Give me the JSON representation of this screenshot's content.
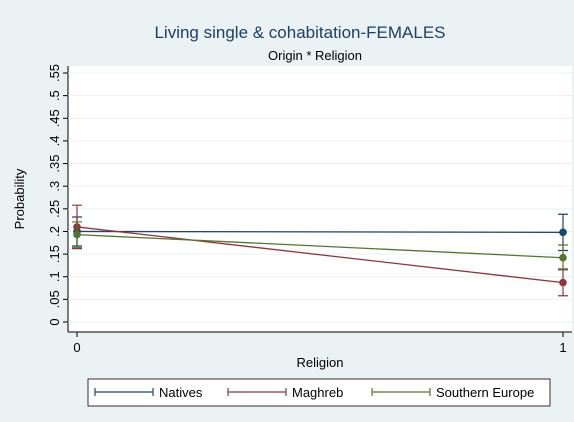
{
  "chart_data": {
    "type": "line",
    "title": "Living single & cohabitation-FEMALES",
    "subtitle": "Origin * Religion",
    "x_label": "Religion",
    "y_label": "Probability",
    "x": [
      0,
      1
    ],
    "xlim": [
      0,
      1
    ],
    "xticks": [
      0,
      1
    ],
    "ylim": [
      0,
      0.55
    ],
    "yticks": [
      0,
      {
        "value": 0.05,
        "label": ".05"
      },
      {
        "value": 0.1,
        "label": ".1"
      },
      {
        "value": 0.15,
        "label": ".15"
      },
      {
        "value": 0.2,
        "label": ".2"
      },
      {
        "value": 0.25,
        "label": ".25"
      },
      {
        "value": 0.3,
        "label": ".3"
      },
      {
        "value": 0.35,
        "label": ".35"
      },
      {
        "value": 0.4,
        "label": ".4"
      },
      {
        "value": 0.45,
        "label": ".45"
      },
      {
        "value": 0.5,
        "label": ".5"
      },
      {
        "value": 0.55,
        "label": ".55"
      }
    ],
    "grid": true,
    "legend": "bottom",
    "series": [
      {
        "name": "Natives",
        "color": "#1a476f",
        "values": [
          0.2,
          0.198
        ],
        "lower": [
          0.168,
          0.158
        ],
        "upper": [
          0.232,
          0.238
        ]
      },
      {
        "name": "Maghreb",
        "color": "#90353b",
        "values": [
          0.21,
          0.087
        ],
        "lower": [
          0.162,
          0.058
        ],
        "upper": [
          0.258,
          0.117
        ]
      },
      {
        "name": "Southern Europe",
        "color": "#55752f",
        "values": [
          0.193,
          0.142
        ],
        "lower": [
          0.165,
          0.115
        ],
        "upper": [
          0.221,
          0.17
        ]
      }
    ]
  }
}
